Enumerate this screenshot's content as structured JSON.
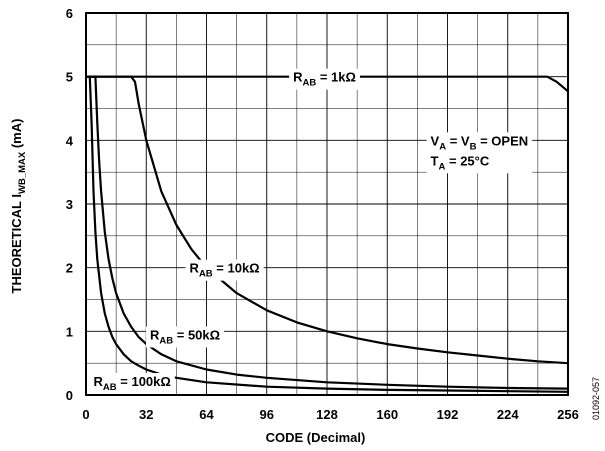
{
  "chart_data": {
    "type": "line",
    "xlabel": "CODE (Decimal)",
    "ylabel": {
      "main": "THEORETICAL I",
      "sub": "WB_MAX",
      "unit": " (mA)"
    },
    "xlim": [
      0,
      256
    ],
    "ylim": [
      0,
      6
    ],
    "xticks": [
      0,
      32,
      64,
      96,
      128,
      160,
      192,
      224,
      256
    ],
    "yticks": [
      0,
      1,
      2,
      3,
      4,
      5,
      6
    ],
    "grid": true,
    "annotations": [
      {
        "lines": [
          {
            "parts": [
              {
                "t": "V",
                "s": false
              },
              {
                "t": "A",
                "s": true
              },
              {
                "t": " = V",
                "s": false
              },
              {
                "t": "B",
                "s": true
              },
              {
                "t": " = OPEN",
                "s": false
              }
            ]
          },
          {
            "parts": [
              {
                "t": "T",
                "s": false
              },
              {
                "t": "A",
                "s": true
              },
              {
                "t": " = 25°C",
                "s": false
              }
            ]
          }
        ]
      }
    ],
    "figure_id": "01092-057",
    "series": [
      {
        "name": "R_AB = 1kΩ",
        "label_parts": [
          {
            "t": "R",
            "s": false
          },
          {
            "t": "AB",
            "s": true
          },
          {
            "t": " = 1kΩ",
            "s": false
          }
        ],
        "rab_kohm": 1,
        "x": [
          0,
          1,
          2,
          4,
          8,
          16,
          32,
          64,
          96,
          128,
          160,
          192,
          224,
          240,
          245,
          250,
          256
        ],
        "y": [
          5,
          5,
          5,
          5,
          5,
          5,
          5,
          5,
          5,
          5,
          5,
          5,
          5,
          5,
          5,
          4.92,
          4.77
        ]
      },
      {
        "name": "R_AB = 10kΩ",
        "label_parts": [
          {
            "t": "R",
            "s": false
          },
          {
            "t": "AB",
            "s": true
          },
          {
            "t": " = 10kΩ",
            "s": false
          }
        ],
        "rab_kohm": 10,
        "x": [
          0,
          1,
          4,
          8,
          16,
          24,
          26,
          28,
          32,
          40,
          48,
          56,
          64,
          80,
          96,
          112,
          128,
          144,
          160,
          176,
          192,
          208,
          224,
          240,
          256
        ],
        "y": [
          5,
          5,
          5,
          5,
          5,
          5,
          4.92,
          4.57,
          4.0,
          3.2,
          2.67,
          2.29,
          2.0,
          1.6,
          1.33,
          1.14,
          1.0,
          0.89,
          0.8,
          0.73,
          0.67,
          0.62,
          0.57,
          0.53,
          0.5
        ]
      },
      {
        "name": "R_AB = 50kΩ",
        "label_parts": [
          {
            "t": "R",
            "s": false
          },
          {
            "t": "AB",
            "s": true
          },
          {
            "t": " = 50kΩ",
            "s": false
          }
        ],
        "rab_kohm": 50,
        "x": [
          0,
          1,
          2,
          4,
          5,
          6,
          7,
          8,
          10,
          12,
          14,
          16,
          20,
          24,
          28,
          32,
          40,
          48,
          64,
          80,
          96,
          128,
          160,
          192,
          224,
          256
        ],
        "y": [
          5,
          5,
          5,
          5,
          5,
          4.27,
          3.66,
          3.2,
          2.56,
          2.13,
          1.83,
          1.6,
          1.28,
          1.07,
          0.91,
          0.8,
          0.64,
          0.53,
          0.4,
          0.32,
          0.27,
          0.2,
          0.16,
          0.13,
          0.11,
          0.1
        ]
      },
      {
        "name": "R_AB = 100kΩ",
        "label_parts": [
          {
            "t": "R",
            "s": false
          },
          {
            "t": "AB",
            "s": true
          },
          {
            "t": " = 100kΩ",
            "s": false
          }
        ],
        "rab_kohm": 100,
        "x": [
          0,
          1,
          2,
          3,
          4,
          5,
          6,
          8,
          10,
          12,
          14,
          16,
          20,
          24,
          28,
          32,
          40,
          48,
          64,
          96,
          128,
          160,
          192,
          224,
          256
        ],
        "y": [
          5,
          5,
          5,
          4.27,
          3.2,
          2.56,
          2.13,
          1.6,
          1.28,
          1.07,
          0.91,
          0.8,
          0.64,
          0.53,
          0.46,
          0.4,
          0.32,
          0.27,
          0.2,
          0.13,
          0.1,
          0.08,
          0.07,
          0.06,
          0.05
        ]
      }
    ]
  }
}
